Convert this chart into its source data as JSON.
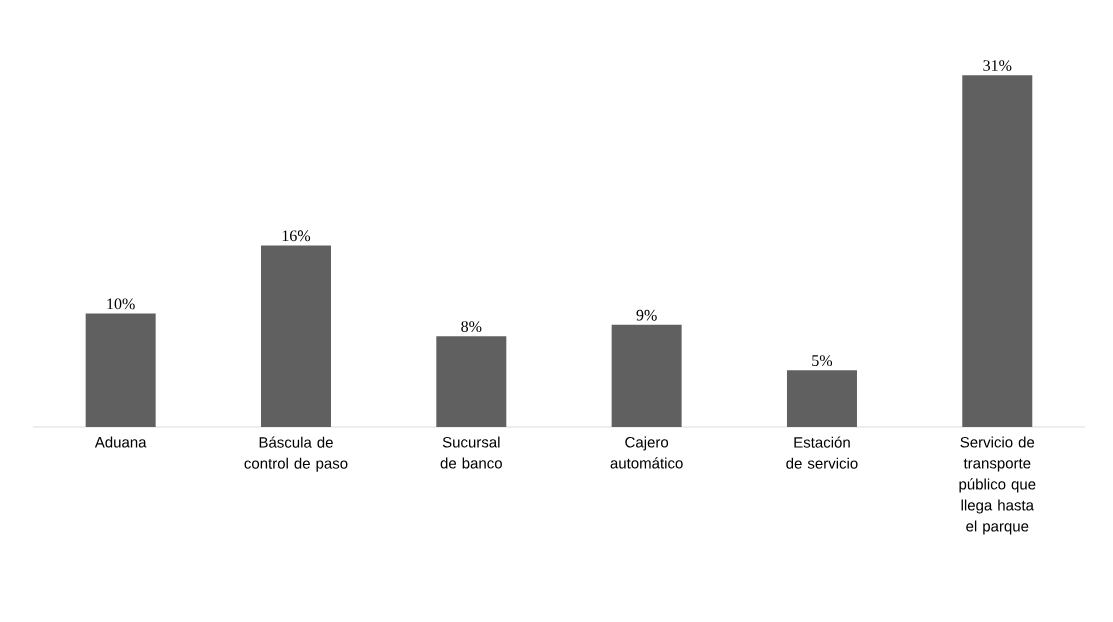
{
  "chart_data": {
    "type": "bar",
    "categories": [
      "Aduana",
      "Báscula de control de paso",
      "Sucursal de banco",
      "Cajero automático",
      "Estación de servicio",
      "Servicio de transporte público que llega hasta el parque"
    ],
    "values": [
      10,
      16,
      8,
      9,
      5,
      31
    ],
    "value_labels": [
      "10%",
      "16%",
      "8%",
      "9%",
      "5%",
      "31%"
    ],
    "color": "#606060"
  }
}
